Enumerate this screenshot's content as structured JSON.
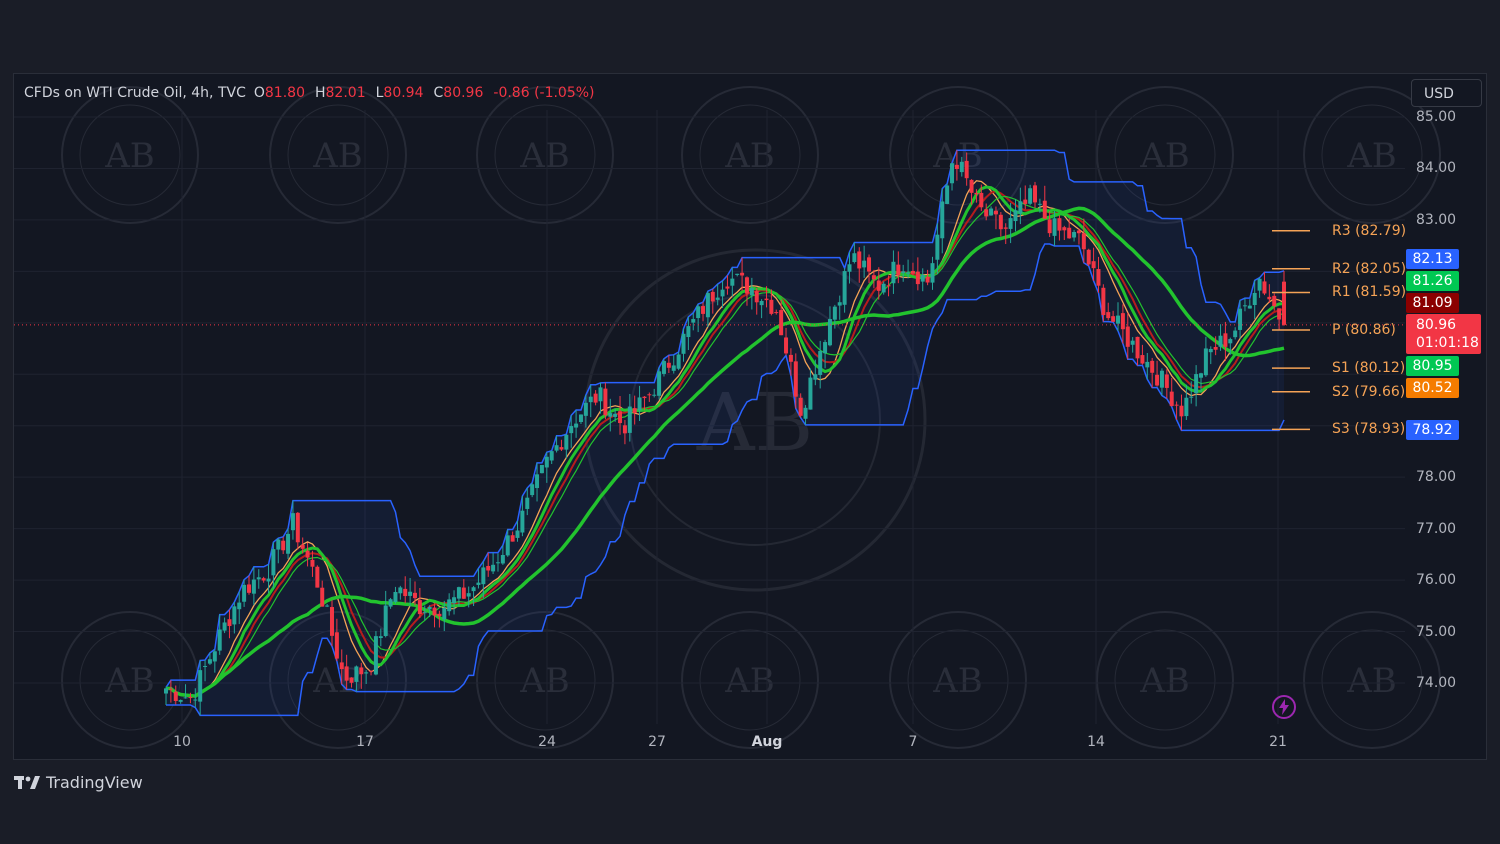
{
  "header": {
    "symbol": "CFDs on WTI Crude Oil, 4h, TVC",
    "open_label": "O",
    "open": "81.80",
    "high_label": "H",
    "high": "82.01",
    "low_label": "L",
    "low": "80.94",
    "close_label": "C",
    "close": "80.96",
    "change": "-0.86 (-1.05%)"
  },
  "currency_button": "USD",
  "brand": "TradingView",
  "watermark_text": "AB",
  "colors": {
    "background": "#131722",
    "up_candle": "#26a69a",
    "down_candle": "#f23645",
    "channel": "#2962ff",
    "ma_fast": "#22c32e",
    "ma_slow": "#f5a356",
    "ma_red": "#b71c1c",
    "pivot": "#f5a356"
  },
  "chart_data": {
    "type": "candlestick",
    "title": "CFDs on WTI Crude Oil, 4h, TVC",
    "x_ticks": [
      "10",
      "17",
      "24",
      "27",
      "Aug",
      "7",
      "14",
      "21"
    ],
    "y_ticks": [
      "85.00",
      "84.00",
      "83.00",
      "78.00",
      "77.00",
      "76.00",
      "75.00",
      "74.00"
    ],
    "ylim": [
      73.2,
      85.1
    ],
    "grid": true,
    "ohlc_last": {
      "open": 81.8,
      "high": 82.01,
      "low": 80.94,
      "close": 80.96
    },
    "approx_close_path": [
      73.9,
      73.7,
      74.8,
      75.8,
      76.2,
      77.1,
      75.9,
      74.1,
      74.3,
      75.9,
      75.5,
      75.5,
      75.8,
      76.4,
      77.2,
      78.3,
      79.1,
      79.6,
      79.0,
      79.6,
      80.4,
      81.2,
      81.9,
      81.7,
      81.3,
      79.3,
      80.9,
      82.3,
      81.7,
      82.2,
      81.8,
      84.3,
      83.2,
      82.8,
      83.4,
      82.8,
      82.6,
      81.2,
      80.6,
      80.0,
      79.3,
      80.4,
      80.8,
      81.9,
      80.96
    ],
    "pivots": [
      {
        "label": "R3 (82.79)",
        "value": 82.79
      },
      {
        "label": "R2 (82.05)",
        "value": 82.05
      },
      {
        "label": "R1 (81.59)",
        "value": 81.59
      },
      {
        "label": "P (80.86)",
        "value": 80.86
      },
      {
        "label": "S1 (80.12)",
        "value": 80.12
      },
      {
        "label": "S2 (79.66)",
        "value": 79.66
      },
      {
        "label": "S3 (78.93)",
        "value": 78.93
      }
    ],
    "price_badges": [
      {
        "text": "82.13",
        "value": 82.13,
        "color": "#2962ff"
      },
      {
        "text": "81.26",
        "value": 81.26,
        "color": "#00c853"
      },
      {
        "text": "81.09",
        "value": 81.09,
        "color": "#8b0000"
      },
      {
        "text": "80.95",
        "value": 80.95,
        "color": "#00c853"
      },
      {
        "text": "80.52",
        "value": 80.52,
        "color": "#f57c00"
      },
      {
        "text": "78.92",
        "value": 78.92,
        "color": "#2962ff"
      }
    ],
    "last_price": "80.96",
    "countdown": "01:01:18"
  }
}
